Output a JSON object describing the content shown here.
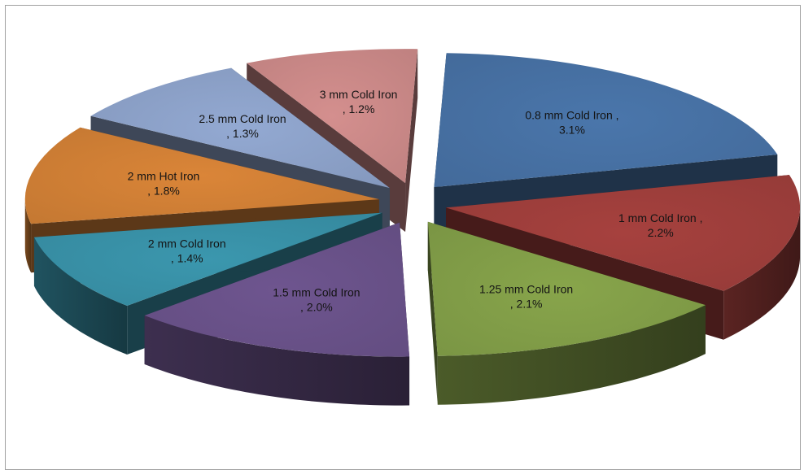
{
  "chart_data": {
    "type": "pie",
    "style": "3d-exploded",
    "title": "",
    "legend": "none",
    "slices": [
      {
        "name": "0.8 mm Cold Iron",
        "value": 3.1,
        "label_line1": "0.8 mm Cold Iron  ,",
        "label_line2": "3.1%",
        "color": "#4a76ab"
      },
      {
        "name": "1 mm Cold Iron",
        "value": 2.2,
        "label_line1": "1 mm Cold Iron ,",
        "label_line2": "2.2%",
        "color": "#a6413e"
      },
      {
        "name": "1.25 mm Cold Iron",
        "value": 2.1,
        "label_line1": "1.25 mm Cold Iron",
        "label_line2": ", 2.1%",
        "color": "#88a54b"
      },
      {
        "name": "1.5 mm Cold Iron",
        "value": 2.0,
        "label_line1": "1.5 mm Cold Iron",
        "label_line2": ", 2.0%",
        "color": "#6e558f"
      },
      {
        "name": "2 mm Cold Iron",
        "value": 1.4,
        "label_line1": "2 mm Cold Iron",
        "label_line2": ", 1.4%",
        "color": "#3b97ae"
      },
      {
        "name": "2 mm Hot Iron",
        "value": 1.8,
        "label_line1": "2 mm Hot Iron",
        "label_line2": ", 1.8%",
        "color": "#da8538"
      },
      {
        "name": "2.5 mm Cold Iron",
        "value": 1.3,
        "label_line1": "2.5 mm Cold Iron",
        "label_line2": ", 1.3%",
        "color": "#93a9d2"
      },
      {
        "name": "3 mm Cold Iron",
        "value": 1.2,
        "label_line1": "3 mm Cold Iron",
        "label_line2": ", 1.2%",
        "color": "#d48f8e"
      }
    ]
  }
}
